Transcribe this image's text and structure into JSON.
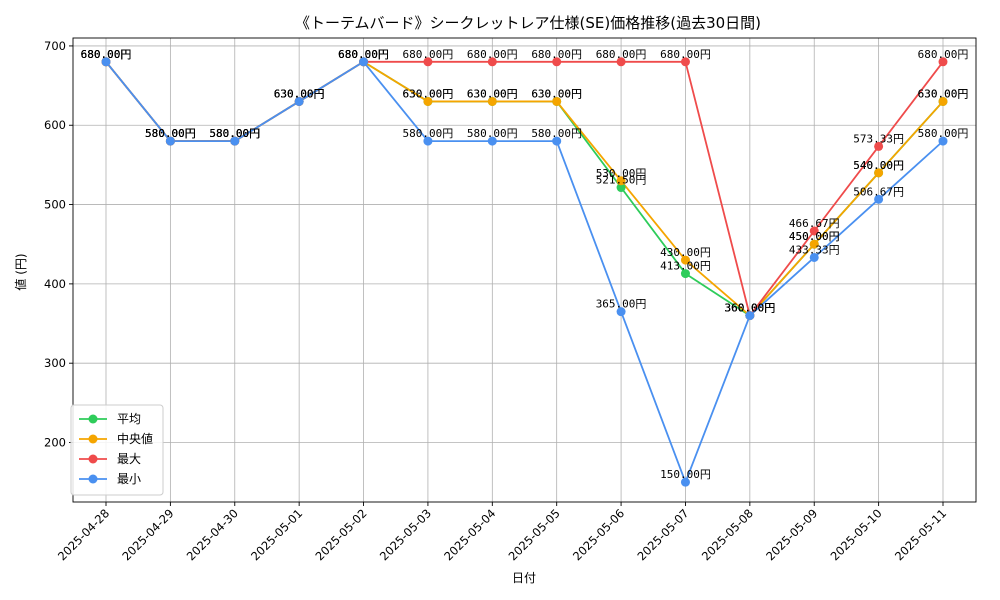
{
  "chart_data": {
    "type": "line",
    "title": "《トーテムバード》シークレットレア仕様(SE)価格推移(過去30日間)",
    "xlabel": "日付",
    "ylabel": "値 (円)",
    "ylim": [
      125,
      710
    ],
    "yticks": [
      200,
      300,
      400,
      500,
      600,
      700
    ],
    "grid": true,
    "legend_position": "lower-left",
    "label_suffix": "円",
    "categories": [
      "2025-04-28",
      "2025-04-29",
      "2025-04-30",
      "2025-05-01",
      "2025-05-02",
      "2025-05-03",
      "2025-05-04",
      "2025-05-05",
      "2025-05-06",
      "2025-05-07",
      "2025-05-08",
      "2025-05-09",
      "2025-05-10",
      "2025-05-11"
    ],
    "series": [
      {
        "name": "平均",
        "color": "#2ecc5a",
        "values": [
          680,
          580,
          580,
          630,
          680,
          630,
          630,
          630,
          521.5,
          413,
          360,
          450,
          540,
          630
        ]
      },
      {
        "name": "中央値",
        "color": "#f5a500",
        "values": [
          680,
          580,
          580,
          630,
          680,
          630,
          630,
          630,
          530,
          430,
          360,
          450,
          540,
          630
        ]
      },
      {
        "name": "最大",
        "color": "#ef4b4b",
        "values": [
          680,
          580,
          580,
          630,
          680,
          680,
          680,
          680,
          680,
          680,
          360,
          466.67,
          573.33,
          680
        ]
      },
      {
        "name": "最小",
        "color": "#4a90f0",
        "values": [
          680,
          580,
          580,
          630,
          680,
          580,
          580,
          580,
          365,
          150,
          360,
          433.33,
          506.67,
          580
        ]
      }
    ]
  }
}
